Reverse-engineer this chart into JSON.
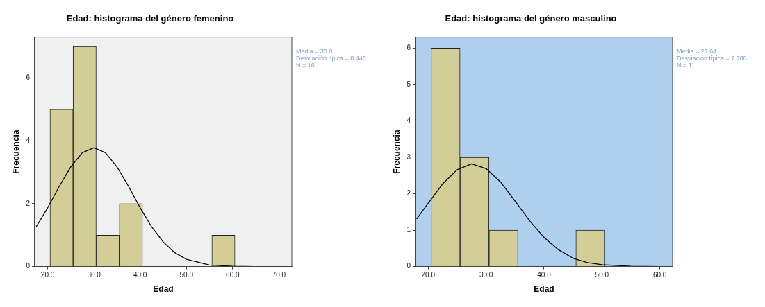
{
  "chart_data": [
    {
      "type": "histogram",
      "title": "Edad: histograma del género femenino",
      "xlabel": "Edad",
      "ylabel": "Frecuencia",
      "bins": [
        20.5,
        25.5,
        30.5,
        35.5,
        40.5,
        45.5,
        50.5,
        55.5,
        60.5
      ],
      "values": [
        5,
        7,
        1,
        2,
        0,
        0,
        0,
        1
      ],
      "color": "#d3ce98",
      "xlim": [
        17.2,
        72.8
      ],
      "xticks": [
        {
          "value": 20,
          "label": "20.0"
        },
        {
          "value": 30,
          "label": "30.0"
        },
        {
          "value": 40,
          "label": "40.0"
        },
        {
          "value": 50,
          "label": "50.0"
        },
        {
          "value": 60,
          "label": "60.0"
        },
        {
          "value": 70,
          "label": "70.0"
        }
      ],
      "ylim": [
        0,
        7.3
      ],
      "yticks": [
        0,
        2,
        4,
        6
      ],
      "grid": false,
      "marker": "none",
      "annotations": [
        "Media = 30.0",
        "Desviación típica = 8.446",
        "N = 16"
      ],
      "series": [
        {
          "type": "line",
          "color": "#000000",
          "x": [
            17.5,
            20,
            22.5,
            25,
            27.5,
            30,
            32.5,
            35,
            37.5,
            40,
            42.5,
            45,
            47.5,
            50,
            55,
            60,
            65,
            72.5
          ],
          "values": [
            1.26,
            1.87,
            2.55,
            3.17,
            3.62,
            3.78,
            3.62,
            3.17,
            2.55,
            1.87,
            1.26,
            0.78,
            0.44,
            0.23,
            0.05,
            0.01,
            0,
            0
          ]
        }
      ]
    },
    {
      "type": "histogram",
      "title": "Edad: histograma del género masculino",
      "xlabel": "Edad",
      "ylabel": "Frecuencia",
      "bins": [
        20.5,
        25.5,
        30.5,
        35.5,
        40.5,
        45.5,
        50.5
      ],
      "values": [
        6,
        3,
        1,
        0,
        0,
        1
      ],
      "color": "#d3ce98",
      "xlim": [
        17.8,
        62.2
      ],
      "xticks": [
        {
          "value": 20,
          "label": "20.0"
        },
        {
          "value": 30,
          "label": "30.0"
        },
        {
          "value": 40,
          "label": "40.0"
        },
        {
          "value": 50,
          "label": "50.0"
        },
        {
          "value": 60,
          "label": "60.0"
        }
      ],
      "ylim": [
        0,
        6.3
      ],
      "yticks": [
        0,
        1,
        2,
        3,
        4,
        5,
        6
      ],
      "grid": false,
      "marker": "none",
      "annotations": [
        "Media = 27.64",
        "Desviación típica = 7.788",
        "N = 11"
      ],
      "series": [
        {
          "type": "line",
          "color": "#000000",
          "x": [
            18,
            20,
            22.5,
            25,
            27.5,
            30,
            32.5,
            35,
            37.5,
            40,
            42.5,
            45,
            47.5,
            50,
            55,
            60,
            62
          ],
          "values": [
            1.31,
            1.74,
            2.27,
            2.66,
            2.82,
            2.69,
            2.32,
            1.8,
            1.26,
            0.8,
            0.46,
            0.23,
            0.11,
            0.05,
            0.01,
            0,
            0
          ]
        }
      ]
    }
  ]
}
